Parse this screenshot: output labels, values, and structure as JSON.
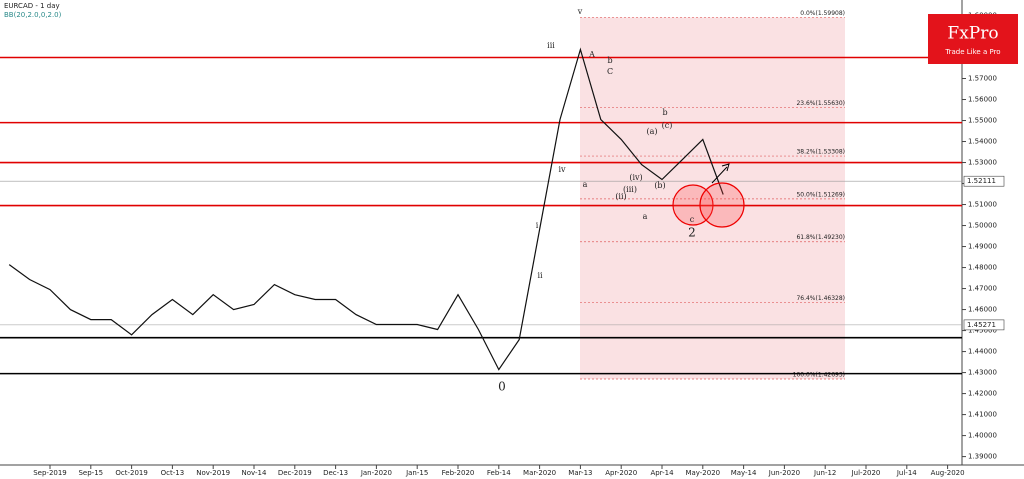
{
  "chart_data": {
    "type": "line",
    "title": "EURCAD - 1 day",
    "subtitle": "BB(20,2.0,0,2.0)",
    "categories": [
      null,
      null,
      "Sep-2019",
      null,
      "Sep-15",
      null,
      "Oct-2019",
      null,
      "Oct-13",
      null,
      "Nov-2019",
      null,
      "Nov-14",
      null,
      "Dec-2019",
      null,
      "Dec-13",
      null,
      "Jan-2020",
      null,
      "Jan-15",
      null,
      "Feb-2020",
      null,
      "Feb-14",
      null,
      "Mar-2020",
      null,
      "Mar-13",
      null,
      "Apr-2020",
      null,
      "Apr-14",
      null,
      "May-2020",
      null,
      "May-14",
      null,
      "Jun-2020",
      null,
      "Jun-12",
      null,
      "Jul-2020",
      null,
      "Jul-14",
      null,
      "Aug-2020"
    ],
    "values": [
      1.4814,
      1.4743,
      1.4695,
      1.46,
      1.4552,
      1.4552,
      1.448,
      1.4576,
      1.4648,
      1.4576,
      1.4671,
      1.46,
      1.4624,
      1.4719,
      1.4671,
      1.4648,
      1.4648,
      1.4576,
      1.4529,
      1.4529,
      1.4529,
      1.4505,
      1.4671,
      1.4505,
      1.4314,
      1.4457,
      1.4981,
      1.5505,
      1.5838,
      1.5505,
      1.541,
      1.529,
      1.5219,
      1.5314,
      1.541,
      1.5148,
      null,
      null,
      null,
      null,
      null,
      null,
      null,
      null,
      null,
      null,
      null
    ],
    "color": "#111111",
    "ylim": [
      1.386,
      1.605
    ],
    "yticks": [
      {
        "value": 1.39,
        "label": "1.39000"
      },
      {
        "value": 1.4,
        "label": "1.40000"
      },
      {
        "value": 1.41,
        "label": "1.41000"
      },
      {
        "value": 1.42,
        "label": "1.42000"
      },
      {
        "value": 1.43,
        "label": "1.43000"
      },
      {
        "value": 1.44,
        "label": "1.44000"
      },
      {
        "value": 1.45,
        "label": "1.45000"
      },
      {
        "value": 1.46,
        "label": "1.46000"
      },
      {
        "value": 1.47,
        "label": "1.47000"
      },
      {
        "value": 1.48,
        "label": "1.48000"
      },
      {
        "value": 1.49,
        "label": "1.49000"
      },
      {
        "value": 1.5,
        "label": "1.50000"
      },
      {
        "value": 1.51,
        "label": "1.51000"
      },
      {
        "value": 1.52,
        "label": "1.52000"
      },
      {
        "value": 1.53,
        "label": "1.53000"
      },
      {
        "value": 1.54,
        "label": "1.54000"
      },
      {
        "value": 1.55,
        "label": "1.55000"
      },
      {
        "value": 1.56,
        "label": "1.56000"
      },
      {
        "value": 1.57,
        "label": "1.57000"
      },
      {
        "value": 1.58,
        "label": "1.58000"
      },
      {
        "value": 1.59,
        "label": "1.59000"
      },
      {
        "value": 1.6,
        "label": "1.60000"
      }
    ],
    "grid": false,
    "levels": [
      {
        "value": 1.58,
        "color": "#e00000"
      },
      {
        "value": 1.549,
        "color": "#e00000"
      },
      {
        "value": 1.53,
        "color": "#e00000"
      },
      {
        "value": 1.5095,
        "color": "#e00000"
      },
      {
        "value": 1.4466,
        "color": "#000000"
      },
      {
        "value": 1.4295,
        "color": "#000000"
      }
    ],
    "fibonacci": [
      {
        "value": 1.59908,
        "label": "0.0%(1.59908)"
      },
      {
        "value": 1.5563,
        "label": "23.6%(1.55630)"
      },
      {
        "value": 1.53308,
        "label": "38.2%(1.53308)"
      },
      {
        "value": 1.51269,
        "label": "50.0%(1.51269)"
      },
      {
        "value": 1.4923,
        "label": "61.8%(1.49230)"
      },
      {
        "value": 1.46328,
        "label": "76.4%(1.46328)"
      },
      {
        "value": 1.42693,
        "label": "100.0%(1.42693)"
      }
    ],
    "price_tags": [
      {
        "value": 1.52111,
        "label": "1.52111"
      },
      {
        "value": 1.45271,
        "label": "1.45271"
      }
    ],
    "wave_labels": [
      "v",
      "iii",
      "iv",
      "i",
      "ii",
      "A",
      "b",
      "C",
      "a",
      "(ii)",
      "(iii)",
      "(iv)",
      "(a)",
      "(b)",
      "(c)",
      "b",
      "c",
      "a",
      "2",
      "0"
    ]
  },
  "logo": {
    "name": "FxPro",
    "tagline": "Trade Like a Pro"
  }
}
